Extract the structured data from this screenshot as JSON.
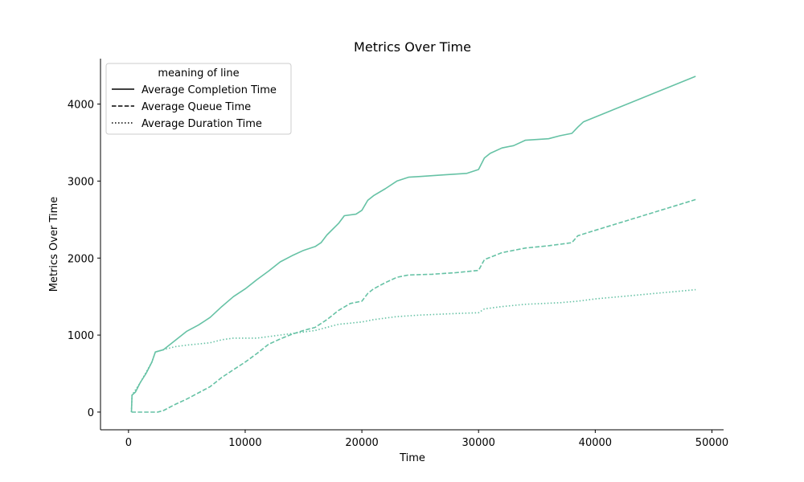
{
  "chart_data": {
    "type": "line",
    "title": "Metrics Over Time",
    "xlabel": "Time",
    "ylabel": "Metrics Over Time",
    "xlim": [
      -2400,
      51000
    ],
    "ylim": [
      -230,
      4590
    ],
    "xticks": [
      {
        "value": 0,
        "label": "0"
      },
      {
        "value": 10000,
        "label": "10000"
      },
      {
        "value": 20000,
        "label": "20000"
      },
      {
        "value": 30000,
        "label": "30000"
      },
      {
        "value": 40000,
        "label": "40000"
      },
      {
        "value": 50000,
        "label": "50000"
      }
    ],
    "yticks": [
      {
        "value": 0,
        "label": "0"
      },
      {
        "value": 1000,
        "label": "1000"
      },
      {
        "value": 2000,
        "label": "2000"
      },
      {
        "value": 3000,
        "label": "3000"
      },
      {
        "value": 4000,
        "label": "4000"
      }
    ],
    "grid": false,
    "spines": "left-bottom",
    "legend": {
      "title": "meaning of line",
      "placement": "upper-left",
      "entries": [
        {
          "label": "Average Completion Time",
          "style": "solid"
        },
        {
          "label": "Average Queue Time",
          "style": "dashed"
        },
        {
          "label": "Average Duration Time",
          "style": "dotted"
        }
      ]
    },
    "line_color": "#66c2a5",
    "series": [
      {
        "name": "Average Completion Time",
        "style": "solid",
        "points": [
          [
            250,
            0
          ],
          [
            300,
            220
          ],
          [
            600,
            260
          ],
          [
            1000,
            380
          ],
          [
            1500,
            500
          ],
          [
            2000,
            650
          ],
          [
            2300,
            780
          ],
          [
            3000,
            810
          ],
          [
            4000,
            930
          ],
          [
            5000,
            1050
          ],
          [
            6000,
            1130
          ],
          [
            7000,
            1230
          ],
          [
            8000,
            1370
          ],
          [
            9000,
            1500
          ],
          [
            10000,
            1600
          ],
          [
            11000,
            1720
          ],
          [
            12000,
            1830
          ],
          [
            13000,
            1950
          ],
          [
            14000,
            2030
          ],
          [
            15000,
            2100
          ],
          [
            16000,
            2150
          ],
          [
            16500,
            2200
          ],
          [
            17000,
            2300
          ],
          [
            18000,
            2450
          ],
          [
            18500,
            2550
          ],
          [
            19500,
            2570
          ],
          [
            20000,
            2620
          ],
          [
            20500,
            2750
          ],
          [
            21000,
            2810
          ],
          [
            22000,
            2900
          ],
          [
            23000,
            3000
          ],
          [
            24000,
            3050
          ],
          [
            25000,
            3060
          ],
          [
            27000,
            3080
          ],
          [
            29000,
            3100
          ],
          [
            30000,
            3150
          ],
          [
            30500,
            3300
          ],
          [
            31000,
            3360
          ],
          [
            32000,
            3430
          ],
          [
            33000,
            3460
          ],
          [
            34000,
            3530
          ],
          [
            36000,
            3550
          ],
          [
            37000,
            3590
          ],
          [
            38000,
            3620
          ],
          [
            38500,
            3700
          ],
          [
            39000,
            3770
          ],
          [
            48600,
            4360
          ]
        ]
      },
      {
        "name": "Average Queue Time",
        "style": "dashed",
        "points": [
          [
            250,
            0
          ],
          [
            2500,
            0
          ],
          [
            3000,
            20
          ],
          [
            4000,
            100
          ],
          [
            5000,
            170
          ],
          [
            6000,
            250
          ],
          [
            7000,
            330
          ],
          [
            8000,
            450
          ],
          [
            9000,
            550
          ],
          [
            10000,
            650
          ],
          [
            11000,
            760
          ],
          [
            12000,
            880
          ],
          [
            13000,
            950
          ],
          [
            14000,
            1010
          ],
          [
            15000,
            1060
          ],
          [
            16000,
            1100
          ],
          [
            17000,
            1200
          ],
          [
            18000,
            1320
          ],
          [
            19000,
            1410
          ],
          [
            20000,
            1440
          ],
          [
            20500,
            1540
          ],
          [
            21000,
            1600
          ],
          [
            22000,
            1680
          ],
          [
            23000,
            1750
          ],
          [
            24000,
            1780
          ],
          [
            26000,
            1790
          ],
          [
            28000,
            1810
          ],
          [
            30000,
            1840
          ],
          [
            30500,
            1980
          ],
          [
            31000,
            2010
          ],
          [
            32000,
            2070
          ],
          [
            34000,
            2130
          ],
          [
            36000,
            2160
          ],
          [
            38000,
            2200
          ],
          [
            38500,
            2290
          ],
          [
            40000,
            2360
          ],
          [
            48600,
            2760
          ]
        ]
      },
      {
        "name": "Average Duration Time",
        "style": "dotted",
        "points": [
          [
            250,
            0
          ],
          [
            300,
            220
          ],
          [
            1000,
            380
          ],
          [
            2000,
            650
          ],
          [
            2300,
            780
          ],
          [
            3000,
            810
          ],
          [
            4000,
            850
          ],
          [
            5000,
            870
          ],
          [
            7000,
            900
          ],
          [
            8000,
            940
          ],
          [
            9000,
            960
          ],
          [
            11000,
            960
          ],
          [
            12000,
            980
          ],
          [
            13000,
            1000
          ],
          [
            14000,
            1020
          ],
          [
            15000,
            1040
          ],
          [
            16000,
            1060
          ],
          [
            17000,
            1100
          ],
          [
            18000,
            1140
          ],
          [
            20000,
            1170
          ],
          [
            21000,
            1200
          ],
          [
            23000,
            1240
          ],
          [
            25000,
            1260
          ],
          [
            28000,
            1280
          ],
          [
            30000,
            1290
          ],
          [
            30500,
            1340
          ],
          [
            32000,
            1370
          ],
          [
            34000,
            1400
          ],
          [
            37000,
            1420
          ],
          [
            38500,
            1440
          ],
          [
            40000,
            1470
          ],
          [
            48600,
            1590
          ]
        ]
      }
    ]
  }
}
